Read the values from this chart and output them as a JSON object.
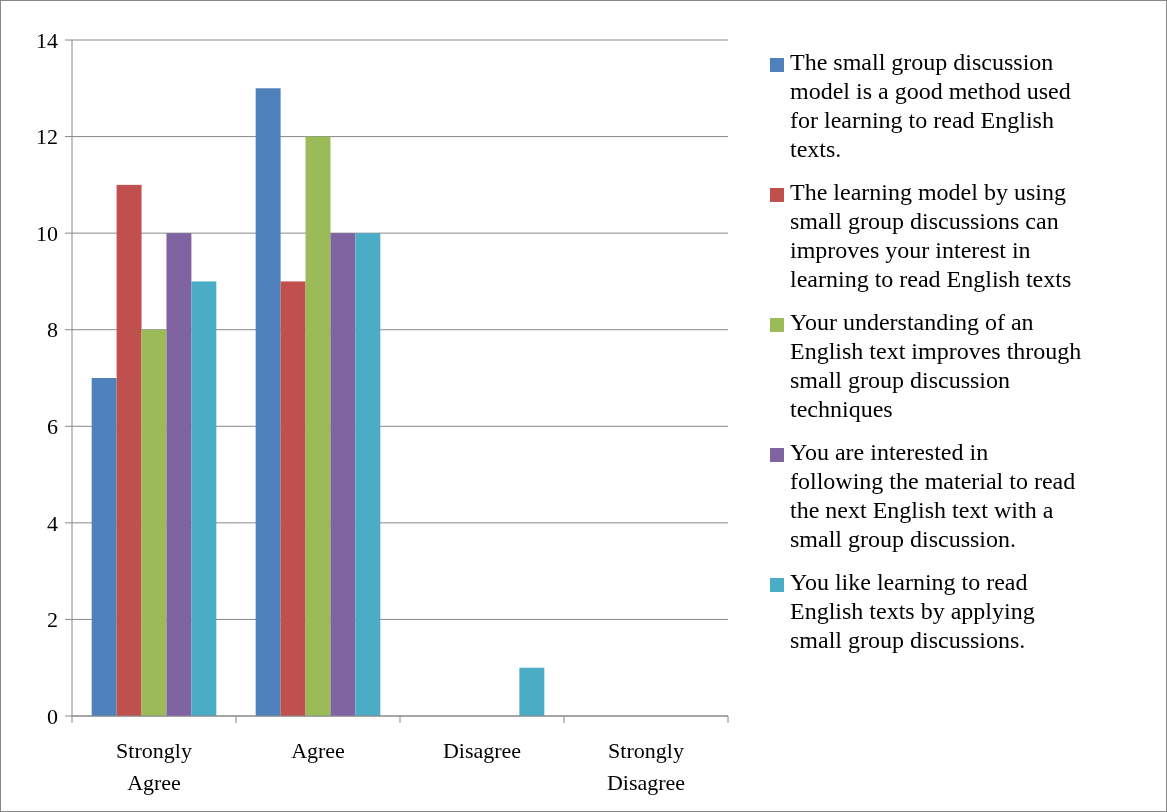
{
  "chart_data": {
    "type": "bar",
    "categories": [
      "Strongly Agree",
      "Agree",
      "Disagree",
      "Strongly Disagree"
    ],
    "series": [
      {
        "name": "The small group discussion model is a good method used for learning to read English texts.",
        "color": "#4f81bd",
        "values": [
          7,
          13,
          0,
          0
        ]
      },
      {
        "name": "The learning model by using small group discussions can improves your interest in learning to read English texts",
        "color": "#c0504d",
        "values": [
          11,
          9,
          0,
          0
        ]
      },
      {
        "name": "Your understanding of an English text improves through small group discussion techniques",
        "color": "#9bbb59",
        "values": [
          8,
          12,
          0,
          0
        ]
      },
      {
        "name": "You are interested in following the material to read the next English text with a small group discussion.",
        "color": "#8064a2",
        "values": [
          10,
          10,
          0,
          0
        ]
      },
      {
        "name": "You like learning to read English texts by applying small group discussions.",
        "color": "#4bacc6",
        "values": [
          9,
          10,
          1,
          0
        ]
      }
    ],
    "ylim": [
      0,
      14
    ],
    "yticks": [
      0,
      2,
      4,
      6,
      8,
      10,
      12,
      14
    ],
    "grid": "y",
    "legend": "right"
  }
}
